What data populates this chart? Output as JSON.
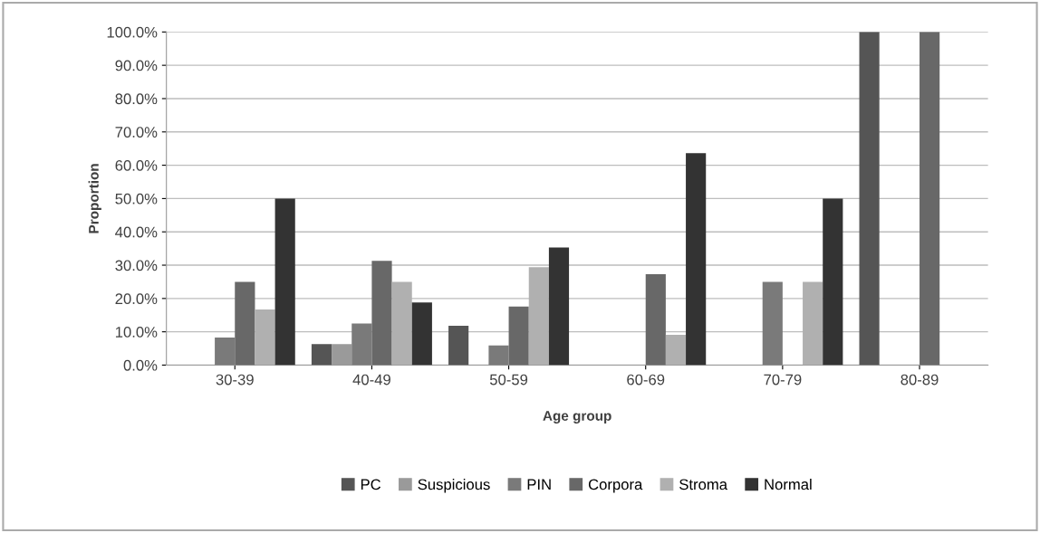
{
  "chart_data": {
    "type": "bar",
    "xlabel": "Age group",
    "ylabel": "Proportion",
    "categories": [
      "30-39",
      "40-49",
      "50-59",
      "60-69",
      "70-79",
      "80-89"
    ],
    "series": [
      {
        "name": "PC",
        "color": "#555555",
        "values": [
          0,
          6.3,
          11.8,
          0,
          0,
          100
        ]
      },
      {
        "name": "Suspicious",
        "color": "#9a9a9a",
        "values": [
          0,
          6.3,
          0,
          0,
          0,
          0
        ]
      },
      {
        "name": "PIN",
        "color": "#7a7a7a",
        "values": [
          8.3,
          12.5,
          5.9,
          0,
          25,
          0
        ]
      },
      {
        "name": "Corpora",
        "color": "#686868",
        "values": [
          25,
          31.3,
          17.6,
          27.3,
          0,
          100
        ]
      },
      {
        "name": "Stroma",
        "color": "#b0b0b0",
        "values": [
          16.7,
          25,
          29.4,
          9.1,
          25,
          0
        ]
      },
      {
        "name": "Normal",
        "color": "#333333",
        "values": [
          50,
          18.8,
          35.3,
          63.6,
          50,
          0
        ]
      }
    ],
    "ylim": [
      0,
      100
    ],
    "yticks": [
      {
        "value": 0,
        "label": "0.0%"
      },
      {
        "value": 10,
        "label": "10.0%"
      },
      {
        "value": 20,
        "label": "20.0%"
      },
      {
        "value": 30,
        "label": "30.0%"
      },
      {
        "value": 40,
        "label": "40.0%"
      },
      {
        "value": 50,
        "label": "50.0%"
      },
      {
        "value": 60,
        "label": "60.0%"
      },
      {
        "value": 70,
        "label": "70.0%"
      },
      {
        "value": 80,
        "label": "80.0%"
      },
      {
        "value": 90,
        "label": "90.0%"
      },
      {
        "value": 100,
        "label": "100.0%"
      }
    ],
    "grid": "y",
    "legend": "bottom"
  }
}
